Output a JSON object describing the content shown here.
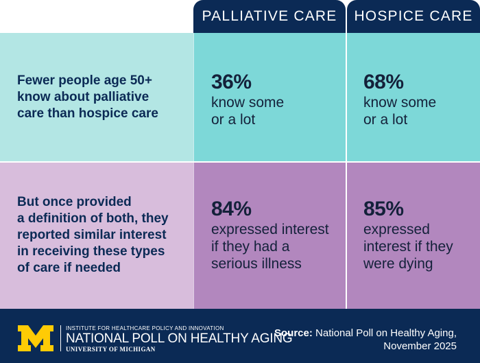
{
  "headers": {
    "palliative": "PALLIATIVE CARE",
    "hospice": "HOSPICE CARE"
  },
  "rows": [
    {
      "label": [
        "Fewer people age 50+",
        "know about palliative",
        "care than hospice care"
      ],
      "palliative": {
        "percent": "36%",
        "desc": [
          "know some",
          "or a lot"
        ]
      },
      "hospice": {
        "percent": "68%",
        "desc": [
          "know some",
          "or a lot"
        ]
      }
    },
    {
      "label": [
        "But once provided",
        "a definition of both, they",
        "reported similar interest",
        "in receiving these types",
        "of care if needed"
      ],
      "palliative": {
        "percent": "84%",
        "desc": [
          "expressed interest",
          "if they had a",
          "serious illness"
        ]
      },
      "hospice": {
        "percent": "85%",
        "desc": [
          "expressed",
          "interest if they",
          "were dying"
        ]
      }
    }
  ],
  "footer": {
    "logo_letter": "M",
    "institute": "INSTITUTE FOR HEALTHCARE POLICY AND INNOVATION",
    "poll_name": "NATIONAL POLL ON HEALTHY AGING",
    "university": "UNIVERSITY OF MICHIGAN",
    "source_label": "Source:",
    "source_text_1": "National Poll on Healthy Aging,",
    "source_text_2": "November 2025"
  },
  "colors": {
    "navy": "#0b2a55",
    "teal_light": "#b3e6e4",
    "teal": "#7dd8d8",
    "purple_light": "#d8bddc",
    "purple": "#b287be",
    "maize": "#ffcb05"
  }
}
